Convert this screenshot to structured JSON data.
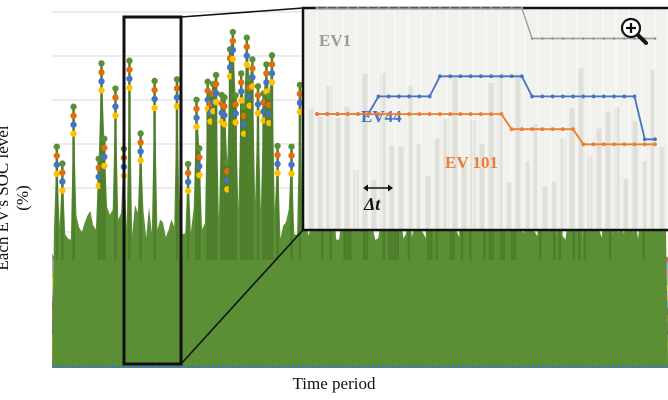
{
  "chart_data": {
    "type": "area",
    "title": "",
    "xlabel": "Time period",
    "ylabel": "Each EV's SOC level (%)",
    "grid": true,
    "description_free": true,
    "main_stack": {
      "top_series_color": "#5b8f35",
      "band_colors": [
        "#4472c4",
        "#ed7d31",
        "#a5a5a5",
        "#ffc000",
        "#70ad47",
        "#264478",
        "#9e480e",
        "#636363",
        "#997300",
        "#43682b",
        "#698ed0",
        "#f1975a",
        "#b7b7b7",
        "#ffcd33",
        "#8cc168",
        "#e27cb5",
        "#7ea7d8",
        "#c0504d"
      ]
    },
    "inset": {
      "delta_label": "Δt",
      "zoom_icon": "zoom-in-icon",
      "series": [
        {
          "name": "EV1",
          "color": "#9b9b9b",
          "values": [
            88,
            88,
            88,
            88,
            88,
            88,
            88,
            88,
            88,
            88,
            88,
            88,
            88,
            88,
            88,
            88,
            88,
            88,
            88,
            88,
            88,
            76,
            76,
            76,
            76,
            76,
            76,
            76,
            76,
            76,
            76,
            76,
            76,
            76
          ]
        },
        {
          "name": "EV44",
          "color": "#4472c4",
          "values": [
            46,
            46,
            46,
            46,
            46,
            46,
            53,
            53,
            53,
            53,
            53,
            53,
            61,
            61,
            61,
            61,
            61,
            61,
            61,
            61,
            61,
            53,
            53,
            53,
            53,
            53,
            53,
            53,
            53,
            53,
            53,
            53,
            36,
            36
          ]
        },
        {
          "name": "EV 101",
          "color": "#ed7d31",
          "values": [
            46,
            46,
            46,
            46,
            46,
            46,
            46,
            46,
            46,
            46,
            46,
            46,
            46,
            46,
            46,
            46,
            46,
            46,
            46,
            40,
            40,
            40,
            40,
            40,
            40,
            40,
            34,
            34,
            34,
            34,
            34,
            34,
            34,
            34
          ]
        }
      ]
    }
  }
}
